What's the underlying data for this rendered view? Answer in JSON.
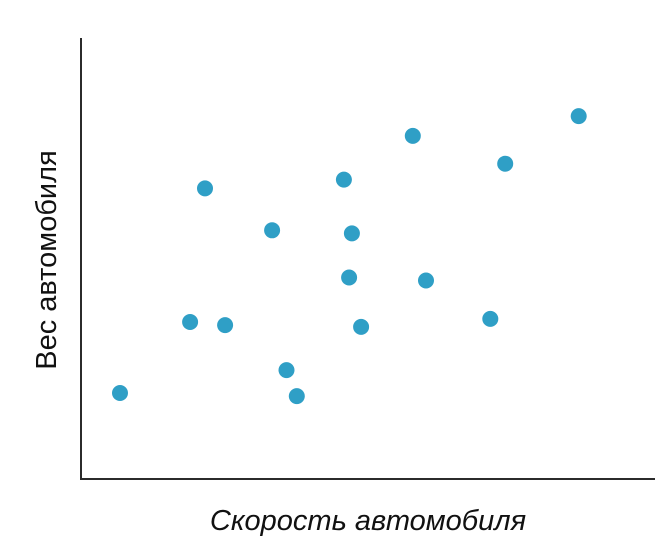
{
  "chart_data": {
    "type": "scatter",
    "title": "",
    "xlabel": "Скорость автомобиля",
    "ylabel": "Вес автомобиля",
    "grid": false,
    "legend": "none",
    "xlim": [
      0,
      100
    ],
    "ylim": [
      0,
      100
    ],
    "point_color": "#2f9fc6",
    "series": [
      {
        "points": [
          {
            "x": 6.8,
            "y": 19.5
          },
          {
            "x": 19.0,
            "y": 35.6
          },
          {
            "x": 21.6,
            "y": 65.9
          },
          {
            "x": 25.1,
            "y": 34.9
          },
          {
            "x": 33.3,
            "y": 56.4
          },
          {
            "x": 35.8,
            "y": 24.7
          },
          {
            "x": 37.6,
            "y": 18.8
          },
          {
            "x": 45.8,
            "y": 67.9
          },
          {
            "x": 46.7,
            "y": 45.7
          },
          {
            "x": 47.2,
            "y": 55.7
          },
          {
            "x": 48.8,
            "y": 34.5
          },
          {
            "x": 57.8,
            "y": 77.8
          },
          {
            "x": 60.1,
            "y": 45.0
          },
          {
            "x": 71.3,
            "y": 36.3
          },
          {
            "x": 73.9,
            "y": 71.5
          },
          {
            "x": 86.7,
            "y": 82.3
          }
        ]
      }
    ]
  }
}
